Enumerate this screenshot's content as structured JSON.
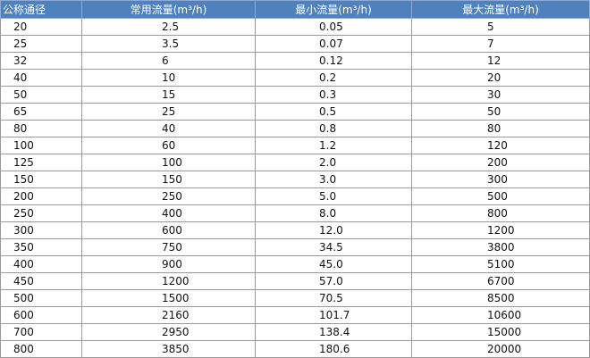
{
  "table": {
    "headers": [
      "公称通径",
      "常用流量(m³/h)",
      "最小流量(m³/h)",
      "最大流量(m³/h)"
    ],
    "rows": [
      [
        "20",
        "2.5",
        "0.05",
        "5"
      ],
      [
        "25",
        "3.5",
        "0.07",
        "7"
      ],
      [
        "32",
        "6",
        "0.12",
        "12"
      ],
      [
        "40",
        "10",
        "0.2",
        "20"
      ],
      [
        "50",
        "15",
        "0.3",
        "30"
      ],
      [
        "65",
        "25",
        "0.5",
        "50"
      ],
      [
        "80",
        "40",
        "0.8",
        "80"
      ],
      [
        "100",
        "60",
        "1.2",
        "120"
      ],
      [
        "125",
        "100",
        "2.0",
        "200"
      ],
      [
        "150",
        "150",
        "3.0",
        "300"
      ],
      [
        "200",
        "250",
        "5.0",
        "500"
      ],
      [
        "250",
        "400",
        "8.0",
        "800"
      ],
      [
        "300",
        "600",
        "12.0",
        "1200"
      ],
      [
        "350",
        "750",
        "34.5",
        "3800"
      ],
      [
        "400",
        "900",
        "45.0",
        "5100"
      ],
      [
        "450",
        "1200",
        "57.0",
        "6700"
      ],
      [
        "500",
        "1500",
        "70.5",
        "8500"
      ],
      [
        "600",
        "2160",
        "101.7",
        "10600"
      ],
      [
        "700",
        "2950",
        "138.4",
        "15000"
      ],
      [
        "800",
        "3850",
        "180.6",
        "20000"
      ]
    ]
  },
  "colors": {
    "header_bg": "#4f81bd",
    "header_text": "#ffffff",
    "border": "#9a9a9a"
  }
}
